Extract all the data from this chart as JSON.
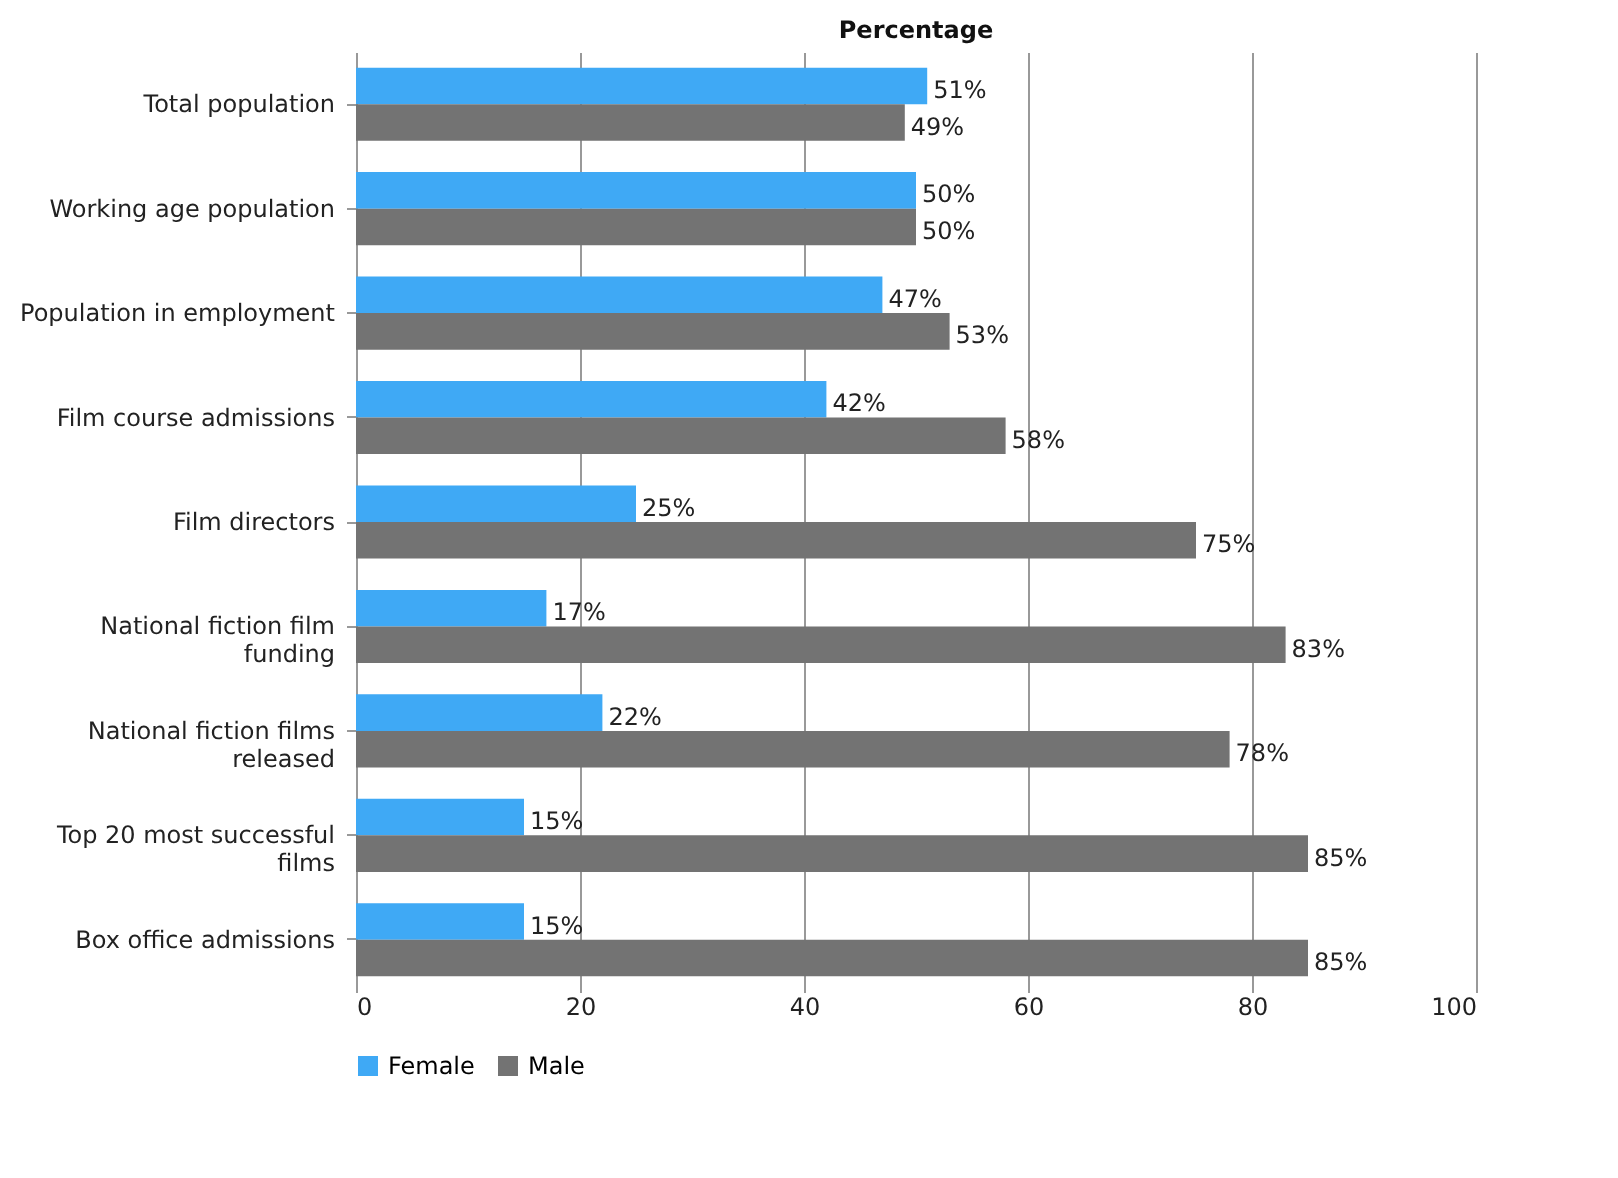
{
  "chart_data": {
    "type": "bar",
    "orientation": "horizontal",
    "title": "Percentage",
    "categories": [
      "Total population",
      "Working age population",
      "Population in employment",
      "Film course admissions",
      "Film directors",
      "National fiction film funding",
      "National fiction films released",
      "Top 20 most successful films",
      "Box office admissions"
    ],
    "series": [
      {
        "name": "Female",
        "color": "#3fa9f5",
        "values": [
          51,
          50,
          47,
          42,
          25,
          17,
          22,
          15,
          15
        ],
        "value_labels": [
          "51%",
          "50%",
          "47%",
          "42%",
          "25%",
          "17%",
          "22%",
          "15%",
          "15%"
        ]
      },
      {
        "name": "Male",
        "color": "#737373",
        "values": [
          49,
          50,
          53,
          58,
          75,
          83,
          78,
          85,
          85
        ],
        "value_labels": [
          "49%",
          "50%",
          "53%",
          "58%",
          "75%",
          "83%",
          "78%",
          "85%",
          "85%"
        ]
      }
    ],
    "xlim": [
      0,
      100
    ],
    "xticks": [
      0,
      20,
      40,
      60,
      80,
      100
    ],
    "grid": "x",
    "legend": "bottom"
  }
}
